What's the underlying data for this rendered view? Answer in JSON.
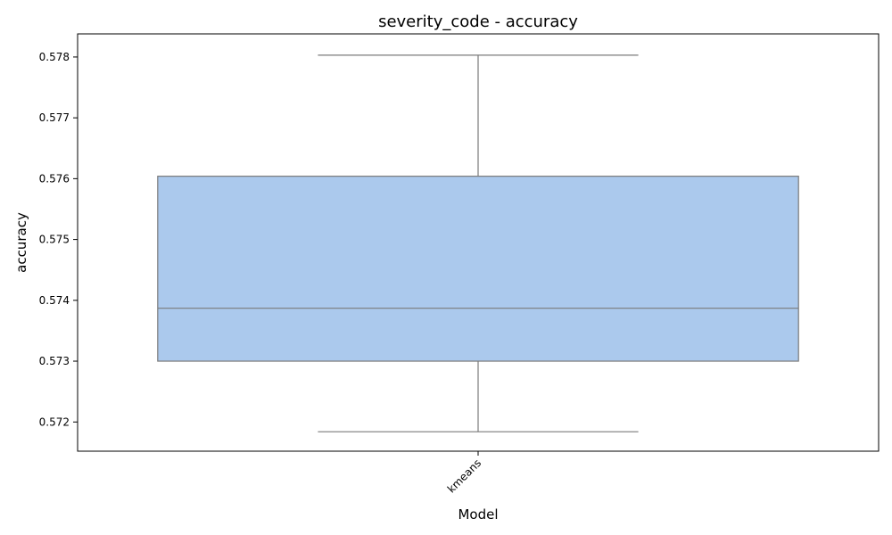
{
  "chart_data": {
    "type": "box",
    "title": "severity_code - accuracy",
    "xlabel": "Model",
    "ylabel": "accuracy",
    "categories": [
      "kmeans"
    ],
    "boxes": [
      {
        "category": "kmeans",
        "whisker_low": 0.57184,
        "q1": 0.573,
        "median": 0.57387,
        "q3": 0.57604,
        "whisker_high": 0.57803
      }
    ],
    "ylim": [
      0.57152,
      0.57838
    ],
    "yticks": [
      0.572,
      0.573,
      0.574,
      0.575,
      0.576,
      0.577,
      0.578
    ],
    "ytick_labels": [
      "0.572",
      "0.573",
      "0.574",
      "0.575",
      "0.576",
      "0.577",
      "0.578"
    ],
    "xtick_rotation_deg": 45,
    "grid": false,
    "legend": "none",
    "colors": {
      "box_fill": "#abc9ed",
      "line": "#7a7a7a",
      "axes": "#000000"
    }
  }
}
